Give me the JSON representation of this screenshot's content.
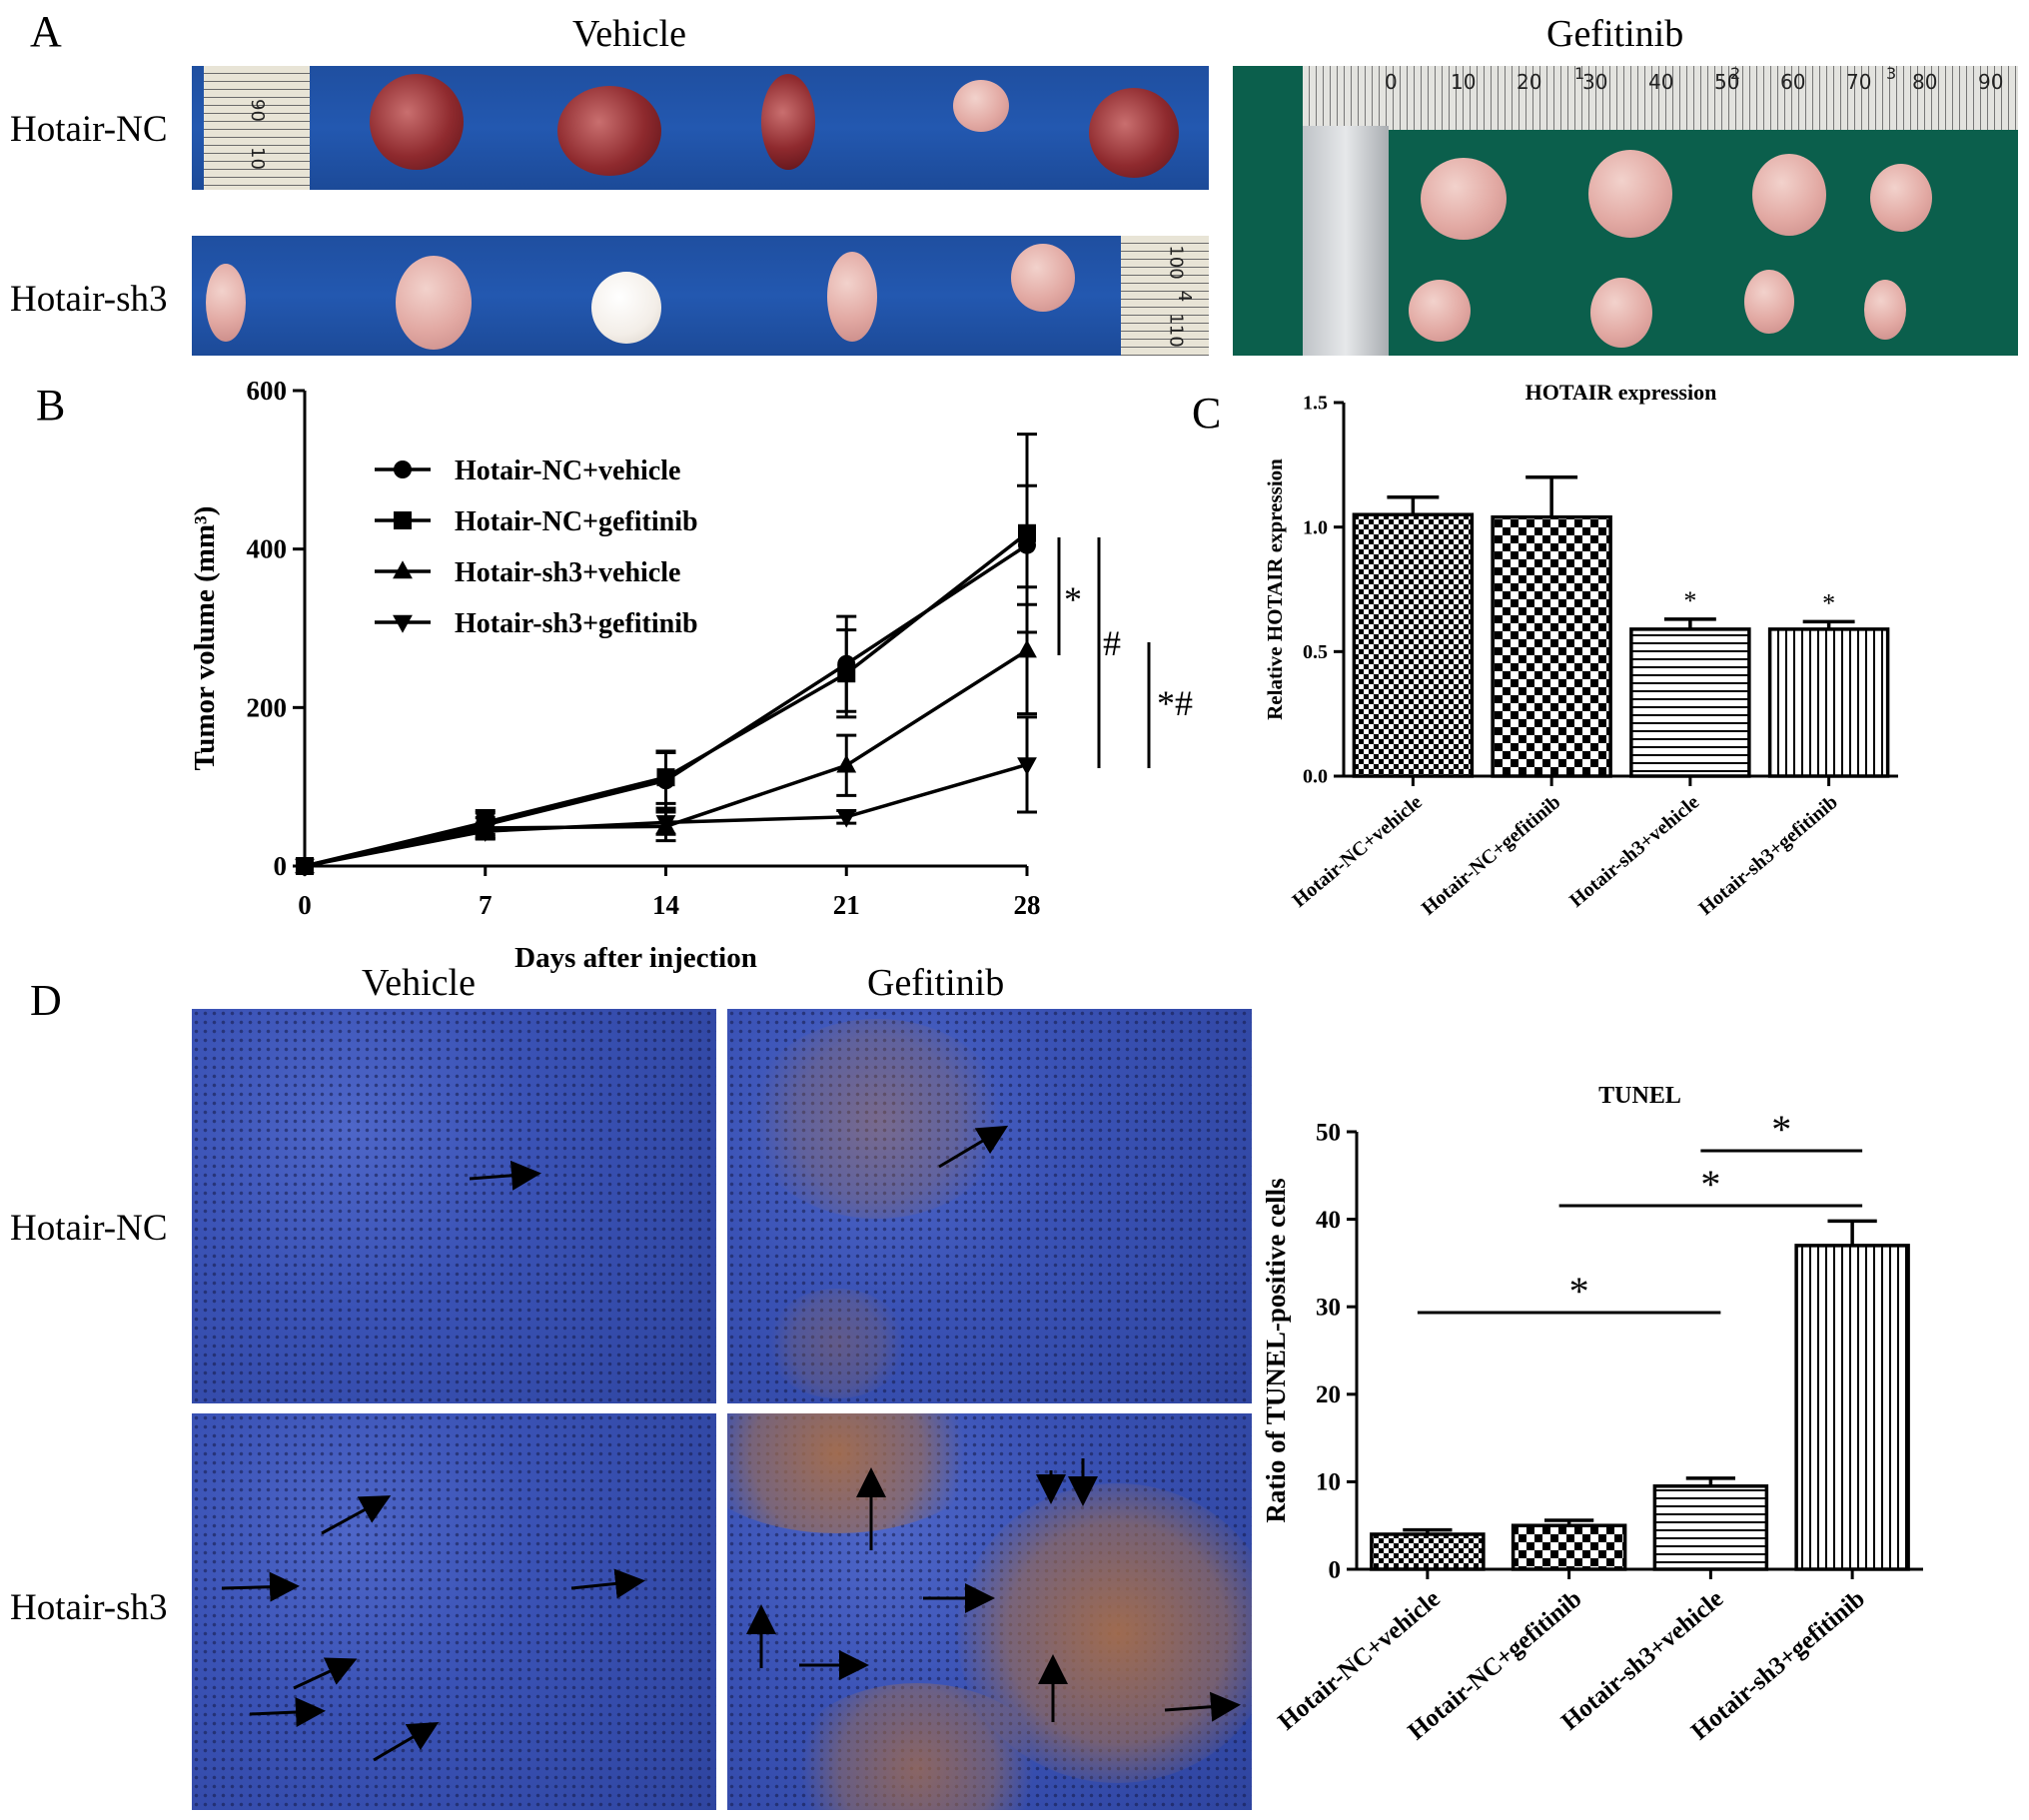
{
  "panel_a": {
    "letter": "A",
    "vehicle_title": "Vehicle",
    "gefitinib_title": "Gefitinib",
    "row_labels": [
      "Hotair-NC",
      "Hotair-sh3"
    ],
    "ruler_top_numbers": [
      "0",
      "10",
      "20",
      "30",
      "40",
      "50",
      "60",
      "70",
      "80",
      "90"
    ],
    "ruler_top_inches": [
      "1",
      "2",
      "3"
    ],
    "ruler_vehicle_top": [
      "90",
      "10"
    ],
    "ruler_vehicle_bottom": [
      "100",
      "4",
      "110"
    ]
  },
  "panel_d": {
    "letter": "D",
    "vehicle_title": "Vehicle",
    "gefitinib_title": "Gefitinib",
    "row_labels": [
      "Hotair-NC",
      "Hotair-sh3"
    ]
  },
  "colors": {
    "line": "#000000",
    "vehicle_mat": "#2358b0",
    "gefitinib_mat": "#0b5f4c",
    "stain_blue": "#3a52b5",
    "stain_brown": "#a86e46"
  },
  "chart_data": [
    {
      "id": "B",
      "panel_letter": "B",
      "type": "line",
      "xlabel": "Days after injection",
      "ylabel": "Tumor volume (mm³)",
      "x": [
        0,
        7,
        14,
        21,
        28
      ],
      "xticks": [
        "0",
        "7",
        "14",
        "21",
        "28"
      ],
      "ylim": [
        0,
        600
      ],
      "yticks": [
        "0",
        "200",
        "400",
        "600"
      ],
      "legend_position": "top-left",
      "series": [
        {
          "name": "Hotair-NC+vehicle",
          "marker": "circle",
          "values": [
            0,
            52,
            108,
            255,
            405
          ],
          "errors": [
            0,
            15,
            35,
            60,
            75
          ]
        },
        {
          "name": "Hotair-NC+gefitinib",
          "marker": "square",
          "values": [
            0,
            55,
            112,
            243,
            420
          ],
          "errors": [
            0,
            15,
            33,
            55,
            125
          ]
        },
        {
          "name": "Hotair-sh3+vehicle",
          "marker": "triangle-up",
          "values": [
            0,
            48,
            50,
            127,
            272
          ],
          "errors": [
            0,
            13,
            18,
            38,
            80
          ]
        },
        {
          "name": "Hotair-sh3+gefitinib",
          "marker": "triangle-down",
          "values": [
            0,
            44,
            55,
            62,
            128
          ],
          "errors": [
            0,
            10,
            15,
            8,
            60
          ]
        }
      ],
      "annotations": [
        "*",
        "#",
        "*#"
      ]
    },
    {
      "id": "C",
      "panel_letter": "C",
      "type": "bar",
      "title": "HOTAIR expression",
      "ylabel": "Relative HOTAIR expression",
      "ylim": [
        0,
        1.5
      ],
      "yticks": [
        "0.0",
        "0.5",
        "1.0",
        "1.5"
      ],
      "categories": [
        "Hotair-NC+vehicle",
        "Hotair-NC+gefitinib",
        "Hotair-sh3+vehicle",
        "Hotair-sh3+gefitinib"
      ],
      "values": [
        1.05,
        1.04,
        0.59,
        0.59
      ],
      "errors": [
        0.07,
        0.16,
        0.04,
        0.03
      ],
      "patterns": [
        "checker-fine",
        "checker-coarse",
        "horizontal",
        "vertical"
      ],
      "significance": [
        "",
        "",
        "*",
        "*"
      ]
    },
    {
      "id": "D",
      "type": "bar",
      "title": "TUNEL",
      "ylabel": "Ratio of TUNEL-positive cells",
      "ylim": [
        0,
        50
      ],
      "yticks": [
        "0",
        "10",
        "20",
        "30",
        "40",
        "50"
      ],
      "categories": [
        "Hotair-NC+vehicle",
        "Hotair-NC+gefitinib",
        "Hotair-sh3+vehicle",
        "Hotair-sh3+gefitinib"
      ],
      "values": [
        4.0,
        5.0,
        9.5,
        37.0
      ],
      "errors": [
        0.5,
        0.6,
        0.9,
        2.8
      ],
      "patterns": [
        "checker-fine",
        "checker-coarse",
        "horizontal",
        "vertical"
      ],
      "significance_brackets": [
        {
          "from": 2,
          "to": 3,
          "label": "*"
        },
        {
          "from": 1,
          "to": 3,
          "label": "*"
        },
        {
          "from": 0,
          "to": 2,
          "label": "*"
        }
      ]
    }
  ]
}
